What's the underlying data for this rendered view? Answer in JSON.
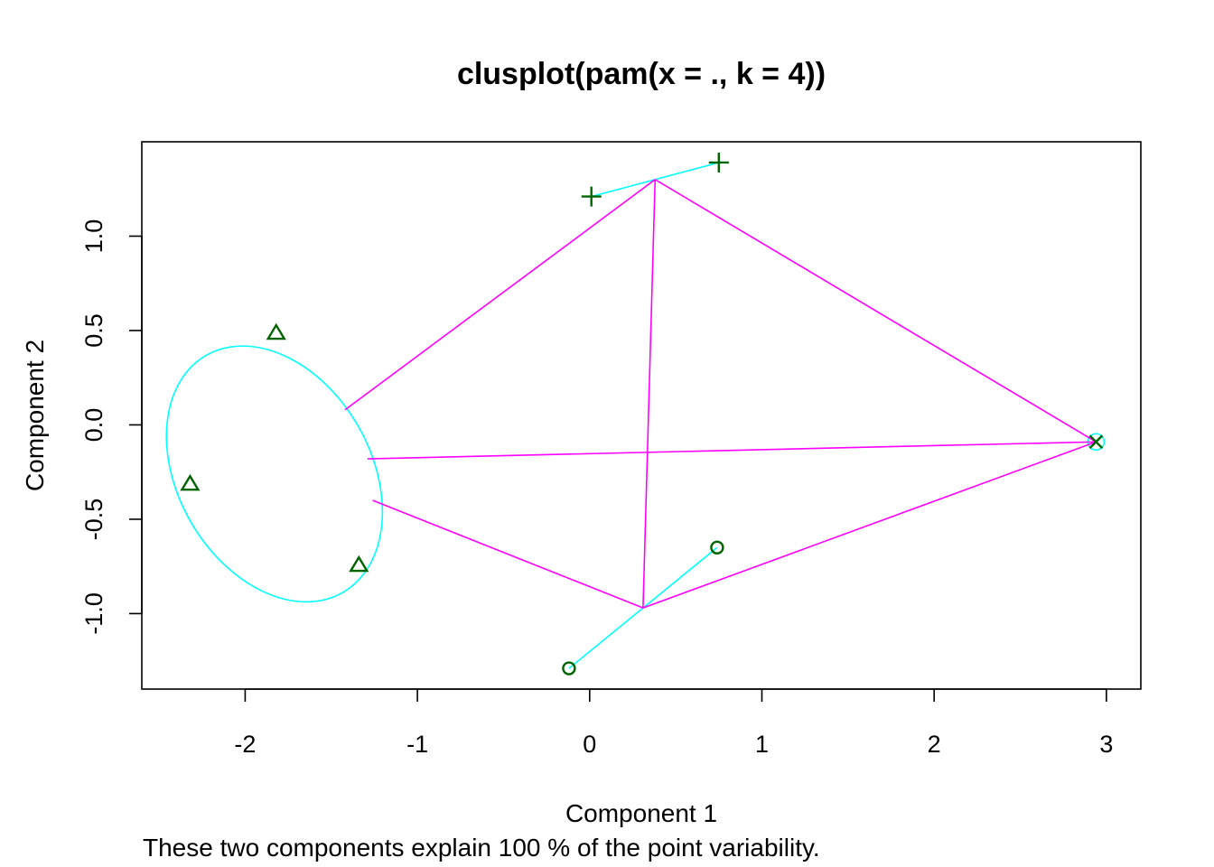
{
  "chart_data": {
    "type": "scatter",
    "title": "clusplot(pam(x = ., k = 4))",
    "xlabel": "Component 1",
    "ylabel": "Component 2",
    "subtitle": "These two components explain 100 % of the point variability.",
    "xlim": [
      -2.6,
      3.2
    ],
    "ylim": [
      -1.4,
      1.5
    ],
    "x_ticks": [
      -2,
      -1,
      0,
      1,
      2,
      3
    ],
    "y_ticks": [
      -1.0,
      -0.5,
      0.0,
      0.5,
      1.0
    ],
    "x_tick_labels": [
      "-2",
      "-1",
      "0",
      "1",
      "2",
      "3"
    ],
    "y_tick_labels": [
      "-1.0",
      "-0.5",
      "0.0",
      "0.5",
      "1.0"
    ],
    "grid": false,
    "colors": {
      "points": "#006400",
      "cluster_shade": "#00FFFF",
      "cluster_links": "#FF00FF"
    },
    "clusters": [
      {
        "id": 1,
        "marker": "triangle",
        "points": [
          {
            "x": -1.82,
            "y": 0.49
          },
          {
            "x": -2.32,
            "y": -0.31
          },
          {
            "x": -1.34,
            "y": -0.74
          }
        ],
        "ellipse": {
          "center": [
            -1.83,
            -0.26
          ],
          "width": 1.12,
          "height": 1.45,
          "rotation_deg": 30
        }
      },
      {
        "id": 2,
        "marker": "plus",
        "points": [
          {
            "x": 0.01,
            "y": 1.21
          },
          {
            "x": 0.75,
            "y": 1.39
          }
        ],
        "center": [
          0.38,
          1.3
        ]
      },
      {
        "id": 3,
        "marker": "circle",
        "points": [
          {
            "x": -0.12,
            "y": -1.29
          },
          {
            "x": 0.74,
            "y": -0.65
          }
        ],
        "center": [
          0.31,
          -0.97
        ]
      },
      {
        "id": 4,
        "marker": "cross",
        "points": [
          {
            "x": 2.94,
            "y": -0.09
          }
        ],
        "center": [
          2.94,
          -0.09
        ]
      }
    ],
    "links": [
      {
        "from": [
          -1.42,
          0.08
        ],
        "to": [
          0.38,
          1.3
        ]
      },
      {
        "from": [
          -1.29,
          -0.18
        ],
        "to": [
          2.94,
          -0.09
        ]
      },
      {
        "from": [
          -1.26,
          -0.4
        ],
        "to": [
          0.31,
          -0.97
        ]
      },
      {
        "from": [
          0.38,
          1.3
        ],
        "to": [
          2.94,
          -0.09
        ]
      },
      {
        "from": [
          0.38,
          1.3
        ],
        "to": [
          0.31,
          -0.97
        ]
      },
      {
        "from": [
          0.31,
          -0.97
        ],
        "to": [
          2.94,
          -0.09
        ]
      }
    ]
  }
}
